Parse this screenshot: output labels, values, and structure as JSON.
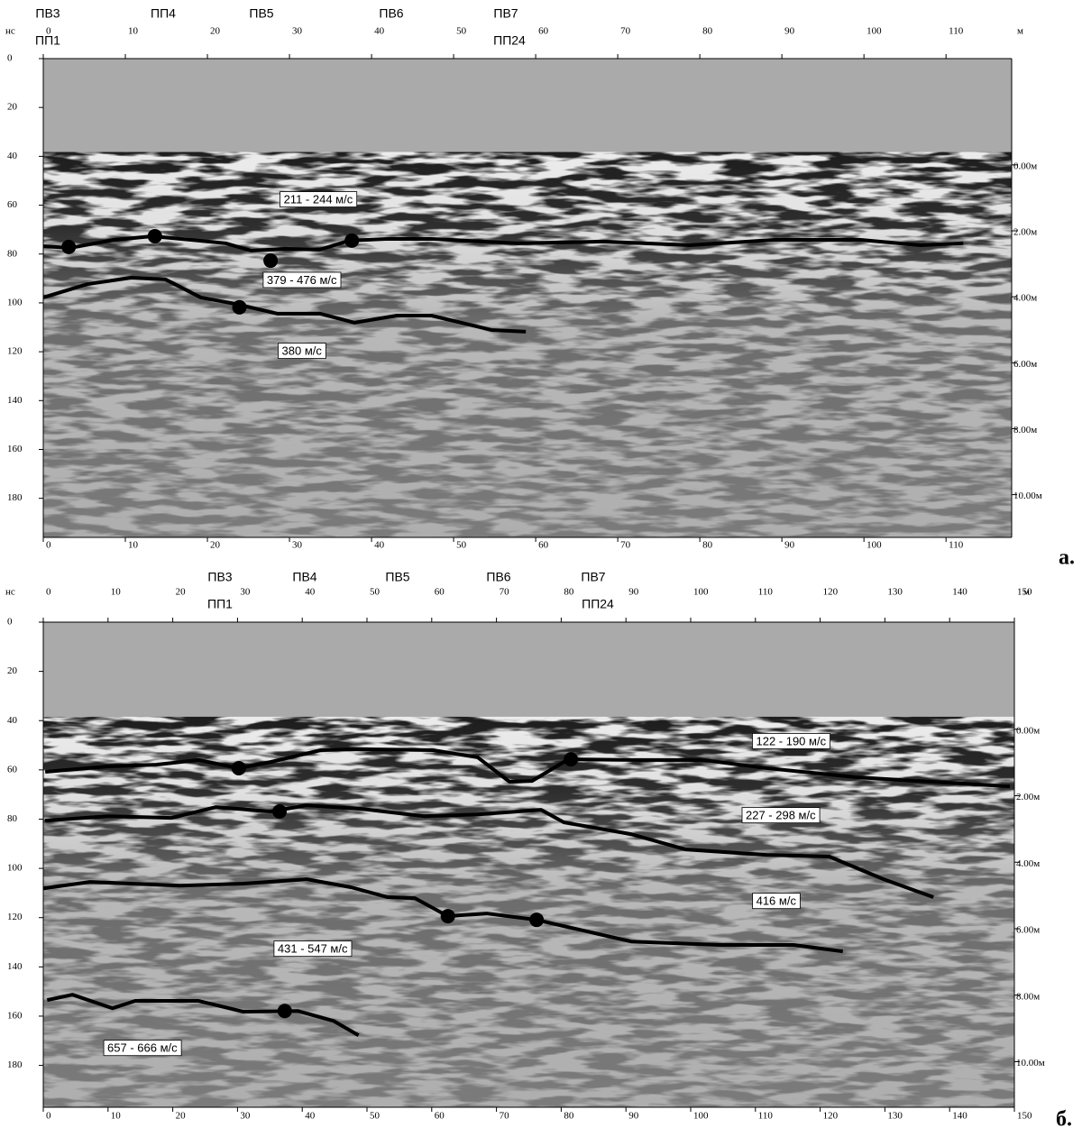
{
  "chart_data": [
    {
      "type": "line",
      "x_label": "м",
      "y_label": "нс",
      "panel_label": "а.",
      "y_inverted": true,
      "xlim": [
        0,
        118
      ],
      "ylim": [
        0,
        196
      ],
      "xticks": [
        0,
        10,
        20,
        30,
        40,
        50,
        60,
        70,
        80,
        90,
        100,
        110
      ],
      "yticks": [
        0,
        20,
        40,
        60,
        80,
        100,
        120,
        140,
        160,
        180
      ],
      "depth_labels": [
        "0.00м",
        "2.00м",
        "4.00м",
        "6.00м",
        "8.00м",
        "10.00м"
      ],
      "markers_top": [
        "ПВ3",
        "ПП4",
        "ПВ5",
        "ПВ6",
        "ПВ7"
      ],
      "markers_bottom": [
        "ПП1",
        "ПП24"
      ],
      "annotations": [
        "211 - 244 м/с",
        "379 - 476 м/с",
        "380 м/с"
      ],
      "series": [
        {
          "color": "#000000",
          "x": [
            0,
            3.3,
            8.6,
            13.3,
            18,
            22.2,
            25.3,
            29.5,
            33.7,
            37.3,
            42,
            47.3,
            57.7,
            68.2,
            78.7,
            89.1,
            99.6,
            106.9,
            112.1
          ],
          "values": [
            76.8,
            77.5,
            74.2,
            72.7,
            74.2,
            75.6,
            78.6,
            77.9,
            78.2,
            74.5,
            73.8,
            73.8,
            75.6,
            74.9,
            76.4,
            74.2,
            74.2,
            76.4,
            75.6
          ]
        },
        {
          "color": "#000000",
          "x": [
            0,
            5.4,
            10.7,
            14.9,
            19.2,
            23.4,
            28.5,
            33.7,
            37.9,
            43.1,
            47.3,
            54.6,
            58.8
          ],
          "values": [
            97.8,
            92.3,
            89.7,
            90.4,
            97.8,
            100.4,
            104.4,
            104.4,
            108.1,
            105.2,
            105.2,
            111.1,
            111.8
          ]
        }
      ],
      "picks": {
        "x": [
          3.1,
          13.6,
          27.7,
          37.6,
          23.9
        ],
        "y": [
          77.1,
          72.7,
          82.7,
          74.5,
          101.8
        ]
      }
    },
    {
      "type": "line",
      "x_label": "м",
      "y_label": "нс",
      "panel_label": "б.",
      "y_inverted": true,
      "xlim": [
        0,
        150
      ],
      "ylim": [
        0,
        197
      ],
      "xticks": [
        0,
        10,
        20,
        30,
        40,
        50,
        60,
        70,
        80,
        90,
        100,
        110,
        120,
        130,
        140,
        150
      ],
      "yticks": [
        0,
        20,
        40,
        60,
        80,
        100,
        120,
        140,
        160,
        180
      ],
      "depth_labels": [
        "0.00м",
        "2.00м",
        "4.00м",
        "6.00м",
        "8.00м",
        "10.00м"
      ],
      "markers_top": [
        "ПВ3",
        "ПВ4",
        "ПВ5",
        "ПВ6",
        "ПВ7"
      ],
      "markers_bottom": [
        "ПП1",
        "ПП24"
      ],
      "annotations": [
        "122 - 190 м/с",
        "227 - 298 м/с",
        "416 м/с",
        "431 - 547 м/с",
        "657 - 666 м/с"
      ],
      "series": [
        {
          "color": "#000000",
          "x": [
            0.3,
            10,
            17.4,
            24,
            30.2,
            35.1,
            42.8,
            49,
            60.2,
            67.1,
            72,
            75.5,
            81.1,
            90.8,
            101.9,
            111.7,
            125.6,
            139.6,
            149.3
          ],
          "values": [
            60.8,
            58.6,
            57.9,
            56,
            59.3,
            56.8,
            52,
            51.6,
            52,
            54.9,
            64.8,
            64.5,
            55.7,
            56,
            56,
            59.3,
            63,
            65.2,
            66.7
          ]
        },
        {
          "color": "#000000",
          "x": [
            0.3,
            10,
            19.8,
            26.7,
            35.1,
            40.7,
            49,
            58.8,
            67.1,
            76.9,
            80.4,
            90.8,
            99.2,
            111.7,
            121.4,
            129.8,
            137.5
          ],
          "values": [
            80.6,
            78.8,
            79.5,
            75.1,
            76.9,
            74.4,
            75.8,
            78.8,
            78.1,
            76.2,
            81.3,
            86.1,
            92.3,
            94.5,
            95.2,
            104.4,
            111.7
          ]
        },
        {
          "color": "#000000",
          "x": [
            0,
            7.2,
            21.2,
            30.9,
            40.7,
            47.6,
            53.2,
            57.4,
            62.5,
            68.5,
            76.2,
            90.8,
            104.7,
            115.9,
            123.5
          ],
          "values": [
            108.1,
            105.5,
            107,
            106.2,
            104.4,
            107.7,
            111.7,
            112.1,
            119.4,
            118.3,
            120.9,
            129.7,
            131.1,
            131.1,
            133.7
          ]
        },
        {
          "color": "#000000",
          "x": [
            0.6,
            4.5,
            10.7,
            14.2,
            24,
            30.9,
            39.3,
            44.8,
            48.7
          ],
          "values": [
            153.5,
            151.3,
            156.8,
            153.8,
            153.8,
            158.2,
            157.9,
            161.9,
            167.8
          ]
        }
      ],
      "picks": {
        "x": [
          30.2,
          36.5,
          62.5,
          76.2,
          37.3,
          81.5
        ],
        "y": [
          59.3,
          76.9,
          119.4,
          120.9,
          157.9,
          55.7
        ]
      }
    }
  ]
}
